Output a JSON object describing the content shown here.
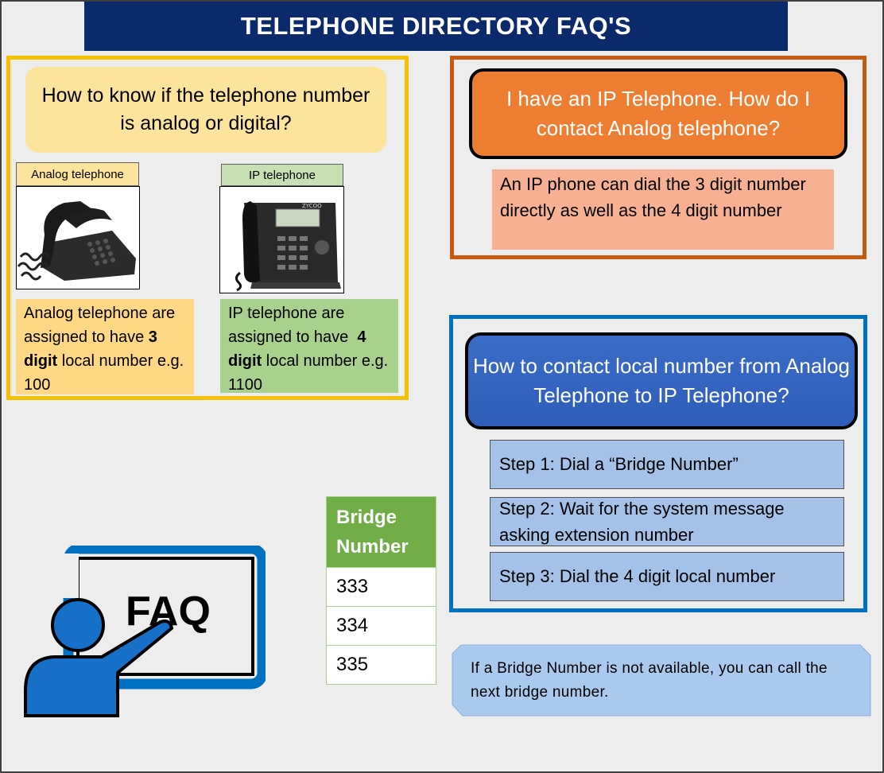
{
  "title": "TELEPHONE DIRECTORY FAQ'S",
  "analog_section": {
    "question": "How to know if the telephone number is analog or digital?",
    "analog_tag": "Analog telephone",
    "ip_tag": "IP telephone",
    "ip_phone_brand": "ZYCOO",
    "analog_desc": {
      "pre": "Analog telephone are assigned to have ",
      "bold": "3 digit",
      "post": " local number e.g. 100"
    },
    "ip_desc": {
      "pre": "IP telephone are assigned to have ",
      "bold1": "4",
      "bold2": "digit",
      "post": " local number e.g. 1100"
    }
  },
  "ip_section": {
    "question": "I have an IP Telephone. How do I contact Analog telephone?",
    "answer": "An IP phone can dial the 3 digit number directly as well as the 4 digit number"
  },
  "steps_section": {
    "question": "How to contact local number from Analog Telephone to IP Telephone?",
    "steps": [
      "Step 1: Dial a “Bridge Number”",
      "Step 2: Wait for the system message asking extension number",
      "Step 3: Dial the 4 digit local number"
    ]
  },
  "bridge_table": {
    "header": "Bridge Number",
    "rows": [
      "333",
      "334",
      "335"
    ]
  },
  "faq_icon": {
    "label": "FAQ",
    "icon": "presenter-board-icon",
    "color": "#0070c0"
  },
  "note": "If a Bridge Number is not available, you can call the next bridge number.",
  "colors": {
    "title_bar": "#0b2a6c",
    "analog_border": "#f5c000",
    "ip_border": "#c55a11",
    "steps_border": "#0070c0",
    "bridge_header": "#70ad47"
  }
}
